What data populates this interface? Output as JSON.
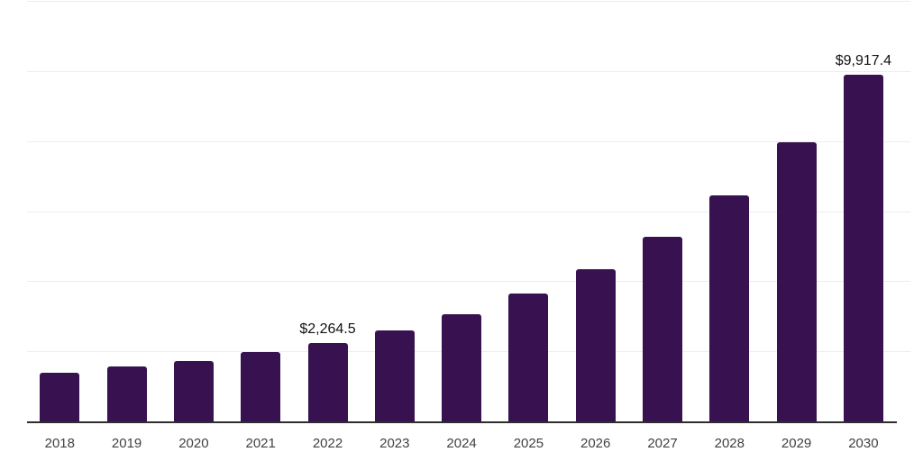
{
  "chart_data": {
    "type": "bar",
    "title": "",
    "xlabel": "",
    "ylabel": "",
    "categories": [
      "2018",
      "2019",
      "2020",
      "2021",
      "2022",
      "2023",
      "2024",
      "2025",
      "2026",
      "2027",
      "2028",
      "2029",
      "2030"
    ],
    "values": [
      1410,
      1600,
      1750,
      2000,
      2264.5,
      2620,
      3080,
      3670,
      4380,
      5290,
      6470,
      7980,
      9917.4
    ],
    "data_labels": {
      "2022": "$2,264.5",
      "2030": "$9,917.4"
    },
    "ylim": [
      0,
      12000
    ],
    "grid": "horizontal",
    "grid_interval": 2000,
    "y_tick_labels_visible": false,
    "legend": "none",
    "colors": {
      "bar": "#371150",
      "gridline": "#ededed",
      "axis": "#2e2e2e",
      "tick_label": "#414141",
      "data_label": "#111111",
      "background": "#ffffff"
    }
  }
}
